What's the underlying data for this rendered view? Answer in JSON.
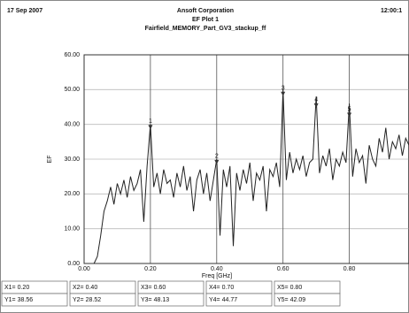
{
  "chart_data": {
    "type": "line",
    "date": "17 Sep 2007",
    "company": "Ansoft Corporation",
    "time": "12:00:1",
    "title": "EF Plot 1",
    "subtitle": "Fairfield_MEMORY_Part_GV3_stackup_ff",
    "xlabel": "Freq [GHz]",
    "ylabel": "EF",
    "xlim": [
      0,
      0.98
    ],
    "ylim": [
      0,
      60
    ],
    "xticks": [
      {
        "value": 0,
        "label": "0.00"
      },
      {
        "value": 0.2,
        "label": "0.20"
      },
      {
        "value": 0.4,
        "label": "0.40"
      },
      {
        "value": 0.6,
        "label": "0.60"
      },
      {
        "value": 0.8,
        "label": "0.80"
      }
    ],
    "yticks": [
      {
        "value": 0,
        "label": "0.00"
      },
      {
        "value": 10,
        "label": "10.00"
      },
      {
        "value": 20,
        "label": "20.00"
      },
      {
        "value": 30,
        "label": "30.00"
      },
      {
        "value": 40,
        "label": "40.00"
      },
      {
        "value": 50,
        "label": "50.00"
      },
      {
        "value": 60,
        "label": "60.00"
      }
    ],
    "grid": true,
    "color": "#222222",
    "x": [
      0.03,
      0.04,
      0.05,
      0.06,
      0.07,
      0.08,
      0.09,
      0.1,
      0.11,
      0.12,
      0.13,
      0.14,
      0.15,
      0.16,
      0.17,
      0.18,
      0.19,
      0.2,
      0.21,
      0.22,
      0.23,
      0.24,
      0.25,
      0.26,
      0.27,
      0.28,
      0.29,
      0.3,
      0.31,
      0.32,
      0.33,
      0.34,
      0.35,
      0.36,
      0.37,
      0.38,
      0.39,
      0.4,
      0.41,
      0.42,
      0.43,
      0.44,
      0.45,
      0.46,
      0.47,
      0.48,
      0.49,
      0.5,
      0.51,
      0.52,
      0.53,
      0.54,
      0.55,
      0.56,
      0.57,
      0.58,
      0.59,
      0.6,
      0.61,
      0.62,
      0.63,
      0.64,
      0.65,
      0.66,
      0.67,
      0.68,
      0.69,
      0.7,
      0.71,
      0.72,
      0.73,
      0.74,
      0.75,
      0.76,
      0.77,
      0.78,
      0.79,
      0.8,
      0.81,
      0.82,
      0.83,
      0.84,
      0.85,
      0.86,
      0.87,
      0.88,
      0.89,
      0.9,
      0.91,
      0.92,
      0.93,
      0.94,
      0.95,
      0.96,
      0.97,
      0.98
    ],
    "values": [
      0,
      2,
      8,
      15,
      18,
      22,
      17,
      23,
      20,
      24,
      19,
      25,
      21,
      23,
      27,
      12,
      28,
      40,
      22,
      26,
      20,
      27,
      23,
      24,
      19,
      26,
      22,
      28,
      21,
      25,
      15,
      24,
      27,
      20,
      26,
      18,
      24,
      30,
      8,
      27,
      22,
      28,
      5,
      26,
      21,
      27,
      23,
      29,
      18,
      26,
      24,
      28,
      15,
      27,
      25,
      29,
      22,
      50,
      24,
      32,
      26,
      30,
      27,
      31,
      25,
      29,
      30,
      48,
      26,
      31,
      28,
      33,
      24,
      30,
      28,
      32,
      29,
      46,
      25,
      33,
      29,
      31,
      23,
      34,
      30,
      28,
      36,
      32,
      39,
      30,
      35,
      33,
      37,
      31,
      36,
      34
    ],
    "markers": [
      {
        "name": "1",
        "x": 0.2,
        "y": 38.56,
        "x_text": "X1= 0.20",
        "y_text": "Y1= 38.56"
      },
      {
        "name": "2",
        "x": 0.4,
        "y": 28.52,
        "x_text": "X2= 0.40",
        "y_text": "Y2= 28.52"
      },
      {
        "name": "3",
        "x": 0.6,
        "y": 48.13,
        "x_text": "X3= 0.60",
        "y_text": "Y3= 48.13"
      },
      {
        "name": "4",
        "x": 0.7,
        "y": 44.77,
        "x_text": "X4= 0.70",
        "y_text": "Y4= 44.77"
      },
      {
        "name": "5",
        "x": 0.8,
        "y": 42.09,
        "x_text": "X5= 0.80",
        "y_text": "Y5= 42.09"
      }
    ]
  }
}
